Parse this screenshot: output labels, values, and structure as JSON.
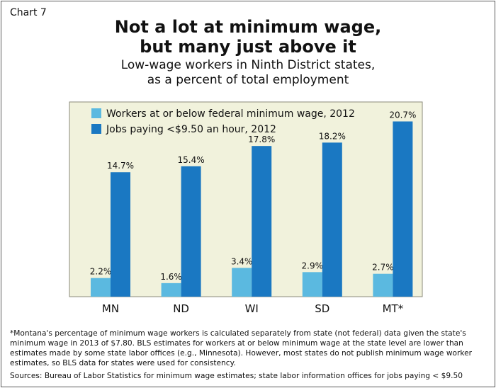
{
  "chart_label": "Chart 7",
  "title_line1": "Not a lot at minimum wage,",
  "title_line2": "but many just above it",
  "subtitle_line1": "Low-wage workers in Ninth District states,",
  "subtitle_line2": "as a percent of total employment",
  "footnote": "*Montana's percentage of minimum wage workers is calculated separately from state (not federal) data given the state's minimum wage in 2013 of $7.80. BLS estimates for workers at or below minimum wage at the state level are lower than estimates made by some state labor offices (e.g., Minnesota). However, most states do not publish minimum wage worker estimates, so BLS data for states were used for consistency.",
  "sources": "Sources: Bureau of Labor Statistics for minimum wage estimates; state labor information offices for jobs paying < $9.50",
  "chart_data": {
    "type": "bar",
    "categories": [
      "MN",
      "ND",
      "WI",
      "SD",
      "MT*"
    ],
    "series": [
      {
        "name": "Workers at or below federal minimum wage, 2012",
        "values": [
          2.2,
          1.6,
          3.4,
          2.9,
          2.7
        ],
        "labels": [
          "2.2%",
          "1.6%",
          "3.4%",
          "2.9%",
          "2.7%"
        ],
        "color": "#5bb9e0"
      },
      {
        "name": "Jobs paying <$9.50 an hour, 2012",
        "values": [
          14.7,
          15.4,
          17.8,
          18.2,
          20.7
        ],
        "labels": [
          "14.7%",
          "15.4%",
          "17.8%",
          "18.2%",
          "20.7%"
        ],
        "color": "#1a78c2"
      }
    ],
    "ylim": [
      0,
      23
    ],
    "grid": false,
    "legend": "top-left",
    "plot_background": "#f1f2dc"
  }
}
